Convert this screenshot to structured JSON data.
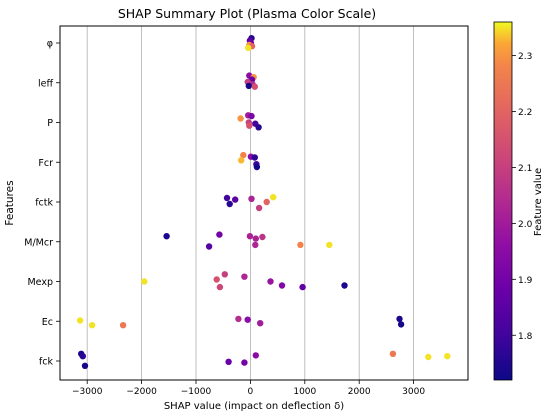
{
  "chart_data": {
    "type": "scatter",
    "title": "SHAP Summary Plot (Plasma Color Scale)",
    "xlabel": "SHAP value (impact on deflection δ)",
    "ylabel": "Features",
    "colorbar_label": "Feature value",
    "xlim": [
      -3500,
      4000
    ],
    "x_ticks": [
      -3000,
      -2000,
      -1000,
      0,
      1000,
      2000,
      3000
    ],
    "x_tick_labels": [
      "−3000",
      "−2000",
      "−1000",
      "0",
      "1000",
      "2000",
      "3000"
    ],
    "grid": "vertical",
    "colormap": "plasma",
    "clim": [
      1.72,
      2.36
    ],
    "colorbar_ticks": [
      1.8,
      1.9,
      2.0,
      2.1,
      2.2,
      2.3
    ],
    "colorbar_tick_labels": [
      "1.8",
      "1.9",
      "2.0",
      "2.1",
      "2.2",
      "2.3"
    ],
    "features": [
      "φ",
      "leff",
      "P",
      "Fcr",
      "fctk",
      "M/Mcr",
      "Mexp",
      "Ec",
      "fck"
    ],
    "points": [
      {
        "f": 0,
        "x": 20,
        "y": 0.12,
        "v": 1.76
      },
      {
        "f": 0,
        "x": -10,
        "y": 0.06,
        "v": 1.85
      },
      {
        "f": 0,
        "x": 10,
        "y": 0.0,
        "v": 1.9
      },
      {
        "f": 0,
        "x": -20,
        "y": -0.05,
        "v": 2.3
      },
      {
        "f": 0,
        "x": 30,
        "y": -0.08,
        "v": 2.2
      },
      {
        "f": 0,
        "x": -40,
        "y": -0.12,
        "v": 2.35
      },
      {
        "f": 1,
        "x": -20,
        "y": 0.18,
        "v": 1.95
      },
      {
        "f": 1,
        "x": 60,
        "y": 0.14,
        "v": 2.3
      },
      {
        "f": 1,
        "x": 30,
        "y": 0.08,
        "v": 1.88
      },
      {
        "f": 1,
        "x": -50,
        "y": 0.02,
        "v": 2.1
      },
      {
        "f": 1,
        "x": 40,
        "y": -0.04,
        "v": 2.05
      },
      {
        "f": 1,
        "x": -30,
        "y": -0.08,
        "v": 1.73
      },
      {
        "f": 1,
        "x": 80,
        "y": -0.1,
        "v": 2.15
      },
      {
        "f": 2,
        "x": -40,
        "y": 0.18,
        "v": 2.0
      },
      {
        "f": 2,
        "x": 20,
        "y": 0.16,
        "v": 1.92
      },
      {
        "f": 2,
        "x": -180,
        "y": 0.1,
        "v": 2.3
      },
      {
        "f": 2,
        "x": -30,
        "y": 0.0,
        "v": 2.1
      },
      {
        "f": 2,
        "x": 90,
        "y": -0.03,
        "v": 1.82
      },
      {
        "f": 2,
        "x": -20,
        "y": -0.08,
        "v": 2.15
      },
      {
        "f": 2,
        "x": 150,
        "y": -0.12,
        "v": 1.76
      },
      {
        "f": 3,
        "x": -130,
        "y": 0.18,
        "v": 2.28
      },
      {
        "f": 3,
        "x": 10,
        "y": 0.14,
        "v": 1.95
      },
      {
        "f": 3,
        "x": 80,
        "y": 0.12,
        "v": 1.77
      },
      {
        "f": 3,
        "x": -170,
        "y": 0.05,
        "v": 2.33
      },
      {
        "f": 3,
        "x": 110,
        "y": -0.05,
        "v": 1.8
      },
      {
        "f": 3,
        "x": 120,
        "y": -0.12,
        "v": 1.73
      },
      {
        "f": 4,
        "x": 420,
        "y": 0.12,
        "v": 2.35
      },
      {
        "f": 4,
        "x": -430,
        "y": 0.1,
        "v": 1.8
      },
      {
        "f": 4,
        "x": 20,
        "y": 0.08,
        "v": 2.02
      },
      {
        "f": 4,
        "x": -280,
        "y": 0.06,
        "v": 1.85
      },
      {
        "f": 4,
        "x": 300,
        "y": 0.0,
        "v": 2.2
      },
      {
        "f": 4,
        "x": -380,
        "y": -0.05,
        "v": 1.76
      },
      {
        "f": 4,
        "x": 160,
        "y": -0.15,
        "v": 2.1
      },
      {
        "f": 5,
        "x": -1540,
        "y": 0.14,
        "v": 1.74
      },
      {
        "f": 5,
        "x": -570,
        "y": 0.18,
        "v": 1.9
      },
      {
        "f": 5,
        "x": -10,
        "y": 0.14,
        "v": 2.02
      },
      {
        "f": 5,
        "x": 220,
        "y": 0.12,
        "v": 2.07
      },
      {
        "f": 5,
        "x": 100,
        "y": 0.08,
        "v": 2.02
      },
      {
        "f": 5,
        "x": 920,
        "y": -0.08,
        "v": 2.28
      },
      {
        "f": 5,
        "x": 1450,
        "y": -0.08,
        "v": 2.35
      },
      {
        "f": 5,
        "x": -760,
        "y": -0.12,
        "v": 1.84
      },
      {
        "f": 5,
        "x": 90,
        "y": -0.08,
        "v": 2.03
      },
      {
        "f": 6,
        "x": -470,
        "y": 0.18,
        "v": 2.1
      },
      {
        "f": 6,
        "x": -110,
        "y": 0.12,
        "v": 2.03
      },
      {
        "f": 6,
        "x": -620,
        "y": 0.05,
        "v": 2.15
      },
      {
        "f": 6,
        "x": 370,
        "y": 0.0,
        "v": 1.98
      },
      {
        "f": 6,
        "x": -1950,
        "y": 0.0,
        "v": 2.35
      },
      {
        "f": 6,
        "x": 580,
        "y": -0.1,
        "v": 1.93
      },
      {
        "f": 6,
        "x": 960,
        "y": -0.14,
        "v": 1.86
      },
      {
        "f": 6,
        "x": -560,
        "y": -0.14,
        "v": 2.12
      },
      {
        "f": 6,
        "x": 1730,
        "y": -0.1,
        "v": 1.74
      },
      {
        "f": 7,
        "x": -3130,
        "y": 0.02,
        "v": 2.35
      },
      {
        "f": 7,
        "x": -2910,
        "y": -0.1,
        "v": 2.35
      },
      {
        "f": 7,
        "x": -2340,
        "y": -0.1,
        "v": 2.25
      },
      {
        "f": 7,
        "x": -220,
        "y": 0.06,
        "v": 2.05
      },
      {
        "f": 7,
        "x": -50,
        "y": 0.04,
        "v": 1.95
      },
      {
        "f": 7,
        "x": 180,
        "y": -0.05,
        "v": 2.0
      },
      {
        "f": 7,
        "x": 2740,
        "y": 0.06,
        "v": 1.74
      },
      {
        "f": 7,
        "x": 2770,
        "y": -0.08,
        "v": 1.73
      },
      {
        "f": 8,
        "x": -3110,
        "y": 0.18,
        "v": 1.74
      },
      {
        "f": 8,
        "x": -3080,
        "y": 0.12,
        "v": 1.76
      },
      {
        "f": 8,
        "x": -3040,
        "y": -0.12,
        "v": 1.73
      },
      {
        "f": 8,
        "x": -400,
        "y": -0.02,
        "v": 1.88
      },
      {
        "f": 8,
        "x": -110,
        "y": -0.04,
        "v": 1.9
      },
      {
        "f": 8,
        "x": 100,
        "y": 0.14,
        "v": 1.95
      },
      {
        "f": 8,
        "x": 2620,
        "y": 0.18,
        "v": 2.25
      },
      {
        "f": 8,
        "x": 3270,
        "y": 0.1,
        "v": 2.35
      },
      {
        "f": 8,
        "x": 3620,
        "y": 0.12,
        "v": 2.35
      }
    ]
  }
}
